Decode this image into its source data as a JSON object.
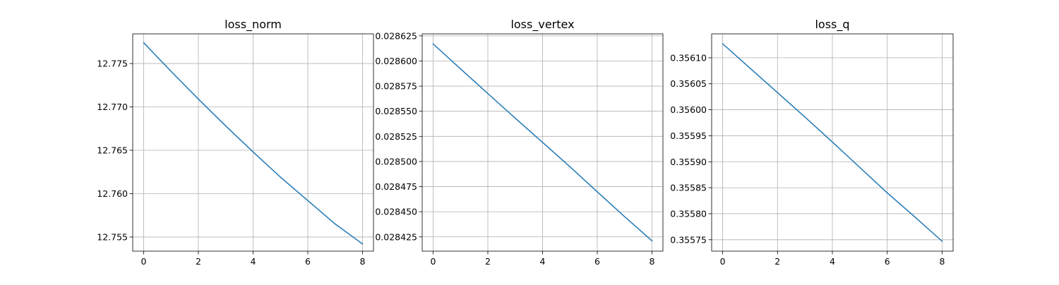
{
  "chart_data": [
    {
      "type": "line",
      "title": "loss_norm",
      "xlabel": "",
      "ylabel": "",
      "grid": true,
      "xlim": [
        -0.4,
        8.4
      ],
      "ylim": [
        12.75337,
        12.77842
      ],
      "xticks": [
        0,
        2,
        4,
        6,
        8
      ],
      "xtick_labels": [
        "0",
        "2",
        "4",
        "6",
        "8"
      ],
      "yticks": [
        12.755,
        12.76,
        12.765,
        12.77,
        12.775
      ],
      "ytick_labels": [
        "12.755",
        "12.760",
        "12.765",
        "12.770",
        "12.775"
      ],
      "series": [
        {
          "color": "#1f77b4",
          "x": [
            0,
            1,
            2,
            3,
            4,
            5,
            6,
            7,
            8
          ],
          "y": [
            12.7774,
            12.7741,
            12.7709,
            12.7678,
            12.7648,
            12.7619,
            12.7592,
            12.7565,
            12.7542
          ]
        }
      ]
    },
    {
      "type": "line",
      "title": "loss_vertex",
      "xlabel": "",
      "ylabel": "",
      "grid": true,
      "xlim": [
        -0.4,
        8.4
      ],
      "ylim": [
        0.0284108,
        0.028627
      ],
      "xticks": [
        0,
        2,
        4,
        6,
        8
      ],
      "xtick_labels": [
        "0",
        "2",
        "4",
        "6",
        "8"
      ],
      "yticks": [
        0.028425,
        0.02845,
        0.028475,
        0.0285,
        0.028525,
        0.02855,
        0.028575,
        0.0286,
        0.028625
      ],
      "ytick_labels": [
        "0.028425",
        "0.028450",
        "0.028475",
        "0.028500",
        "0.028525",
        "0.028550",
        "0.028575",
        "0.028600",
        "0.028625"
      ],
      "series": [
        {
          "color": "#1f77b4",
          "x": [
            0,
            1,
            2,
            3,
            4,
            5,
            6,
            7,
            8
          ],
          "y": [
            0.028617,
            0.0285922,
            0.0285676,
            0.0285432,
            0.028519,
            0.0284948,
            0.0284698,
            0.0284451,
            0.028421
          ]
        }
      ]
    },
    {
      "type": "line",
      "title": "loss_q",
      "xlabel": "",
      "ylabel": "",
      "grid": true,
      "xlim": [
        -0.4,
        8.4
      ],
      "ylim": [
        0.355728,
        0.356146
      ],
      "xticks": [
        0,
        2,
        4,
        6,
        8
      ],
      "xtick_labels": [
        "0",
        "2",
        "4",
        "6",
        "8"
      ],
      "yticks": [
        0.35575,
        0.3558,
        0.35585,
        0.3559,
        0.35595,
        0.356,
        0.35605,
        0.3561
      ],
      "ytick_labels": [
        "0.35575",
        "0.35580",
        "0.35585",
        "0.35590",
        "0.35595",
        "0.35600",
        "0.35605",
        "0.35610"
      ],
      "series": [
        {
          "color": "#1f77b4",
          "x": [
            0,
            1,
            2,
            3,
            4,
            5,
            6,
            7,
            8
          ],
          "y": [
            0.356127,
            0.35608,
            0.356033,
            0.355986,
            0.355938,
            0.355889,
            0.35584,
            0.355794,
            0.355747
          ]
        }
      ]
    }
  ]
}
